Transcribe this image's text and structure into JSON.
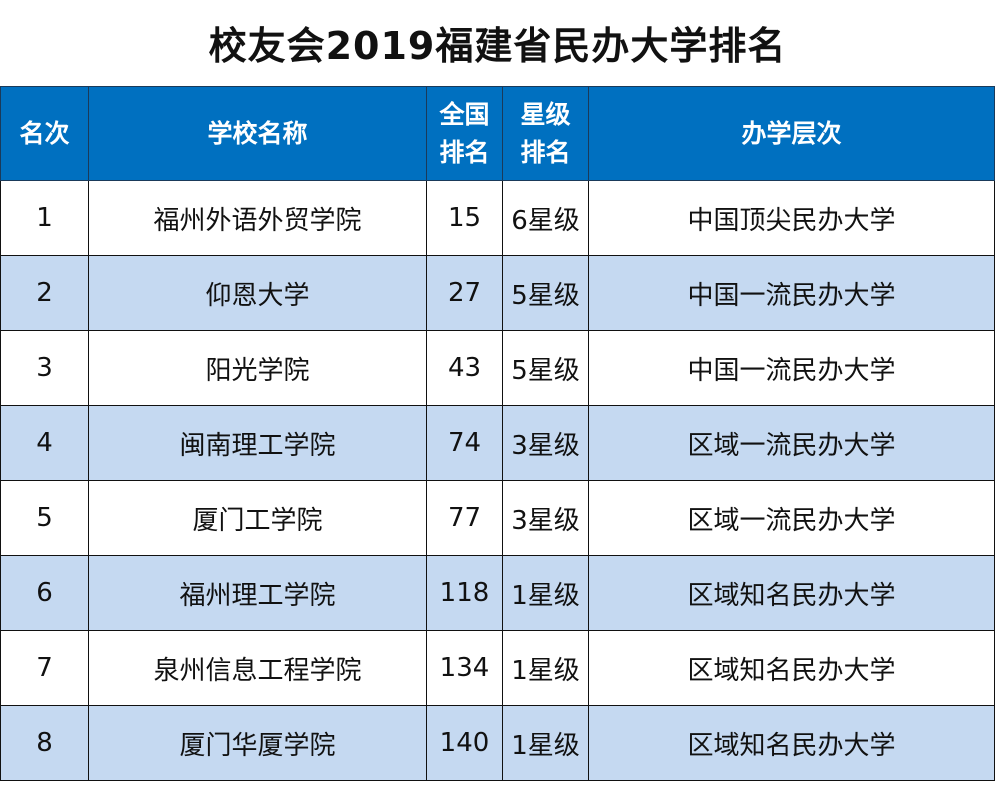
{
  "title": "校友会2019福建省民办大学排名",
  "columns": [
    "名次",
    "学校名称",
    "全国\n排名",
    "星级\n排名",
    "办学层次"
  ],
  "column_lines": [
    [
      "名次"
    ],
    [
      "学校名称"
    ],
    [
      "全国",
      "排名"
    ],
    [
      "星级",
      "排名"
    ],
    [
      "办学层次"
    ]
  ],
  "colors": {
    "header_bg": "#0070C0",
    "alt_row_bg": "#C5D9F1"
  },
  "rows": [
    [
      "1",
      "福州外语外贸学院",
      "15",
      "6星级",
      "中国顶尖民办大学"
    ],
    [
      "2",
      "仰恩大学",
      "27",
      "5星级",
      "中国一流民办大学"
    ],
    [
      "3",
      "阳光学院",
      "43",
      "5星级",
      "中国一流民办大学"
    ],
    [
      "4",
      "闽南理工学院",
      "74",
      "3星级",
      "区域一流民办大学"
    ],
    [
      "5",
      "厦门工学院",
      "77",
      "3星级",
      "区域一流民办大学"
    ],
    [
      "6",
      "福州理工学院",
      "118",
      "1星级",
      "区域知名民办大学"
    ],
    [
      "7",
      "泉州信息工程学院",
      "134",
      "1星级",
      "区域知名民办大学"
    ],
    [
      "8",
      "厦门华厦学院",
      "140",
      "1星级",
      "区域知名民办大学"
    ]
  ]
}
